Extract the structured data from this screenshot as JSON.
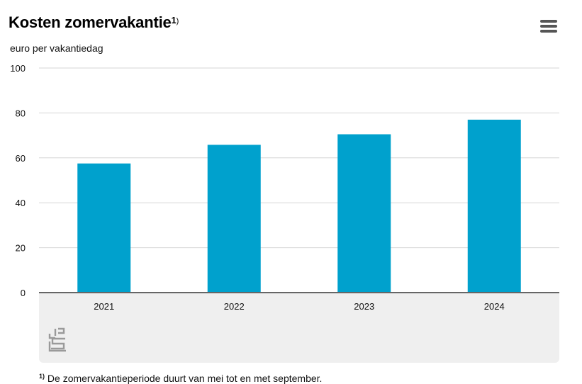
{
  "header": {
    "title": "Kosten zomervakantie",
    "title_note": "1",
    "title_note_paren": ")",
    "subtitle": "euro per vakantiedag"
  },
  "menu": {
    "icon": "hamburger-menu-icon"
  },
  "footnote": {
    "marker": "1)",
    "text": "De zomervakantieperiode duurt van mei tot en met september."
  },
  "logo": {
    "icon": "cbs-logo-icon"
  },
  "colors": {
    "bar": "#00a1cd",
    "grid": "#d6d6d6",
    "axis": "#666666",
    "panel": "#efefef"
  },
  "chart_data": {
    "type": "bar",
    "categories": [
      "2021",
      "2022",
      "2023",
      "2024"
    ],
    "values": [
      57.5,
      65.8,
      70.5,
      77.0
    ],
    "title": "Kosten zomervakantie",
    "ylabel": "euro per vakantiedag",
    "xlabel": "",
    "ylim": [
      0,
      100
    ],
    "yticks": [
      0,
      20,
      40,
      60,
      80,
      100
    ],
    "grid": true,
    "legend": "none"
  }
}
